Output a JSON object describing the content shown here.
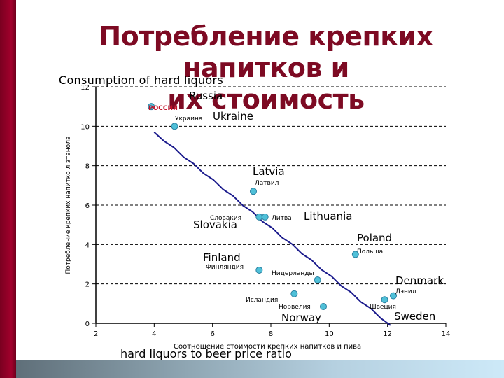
{
  "slide": {
    "title_line1": "Потребление крепких напитков и",
    "title_line2": "их стоимость",
    "colors": {
      "title": "#7d0a23",
      "left_bar": "#8c0024",
      "point_fill": "#4fc0d8",
      "trend_line": "#1a1a8c"
    }
  },
  "chart_data": {
    "type": "scatter",
    "title": "Consumption of hard liquors",
    "xlabel": "Соотношение стоимости крепких напитков и пива",
    "xlabel_en": "hard liquors to beer price ratio",
    "ylabel": "Потребление крепких напитко  л  этанола",
    "xlim": [
      2,
      14
    ],
    "ylim": [
      0,
      12
    ],
    "x_ticks": [
      2,
      4,
      6,
      8,
      10,
      12,
      14
    ],
    "y_ticks": [
      0,
      2,
      4,
      6,
      8,
      10,
      12
    ],
    "grid": "horizontal dashed",
    "points": [
      {
        "name_ru": "РОССИЯ",
        "name_en": "Russia",
        "x": 3.9,
        "y": 11.0
      },
      {
        "name_ru": "Украина",
        "name_en": "Ukraine",
        "x": 4.7,
        "y": 10.0
      },
      {
        "name_ru": "Латвил",
        "name_en": "Latvia",
        "x": 7.4,
        "y": 6.7
      },
      {
        "name_ru": "Словакия",
        "name_en": "Slovakia",
        "x": 7.6,
        "y": 5.4
      },
      {
        "name_ru": "Литва",
        "name_en": "Lithuania",
        "x": 7.8,
        "y": 5.4
      },
      {
        "name_ru": "Польша",
        "name_en": "Poland",
        "x": 10.9,
        "y": 3.5
      },
      {
        "name_ru": "Финляндия",
        "name_en": "Finland",
        "x": 7.6,
        "y": 2.7
      },
      {
        "name_ru": "Нидерланды",
        "name_en": "",
        "x": 9.6,
        "y": 2.2
      },
      {
        "name_ru": "Исландия",
        "name_en": "",
        "x": 8.8,
        "y": 1.5
      },
      {
        "name_ru": "Норвелия",
        "name_en": "Norway",
        "x": 9.8,
        "y": 0.85
      },
      {
        "name_ru": "Швеция",
        "name_en": "Sweden",
        "x": 11.9,
        "y": 1.2
      },
      {
        "name_ru": "Дэнил",
        "name_en": "Denmark",
        "x": 12.2,
        "y": 1.4
      }
    ],
    "trend_line": {
      "x": [
        4.0,
        12.1
      ],
      "y": [
        9.7,
        -0.1
      ]
    }
  }
}
